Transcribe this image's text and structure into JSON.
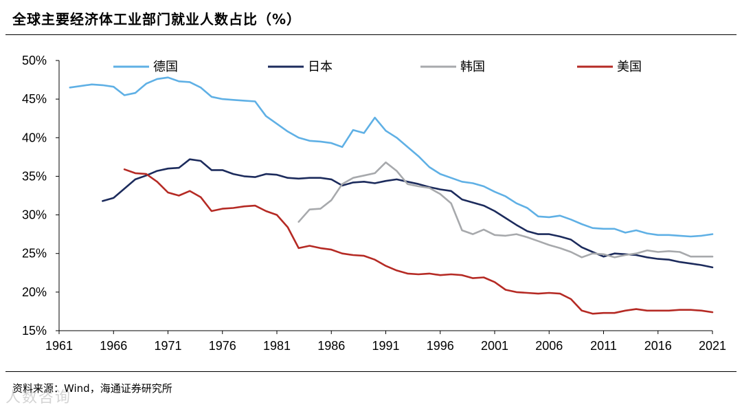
{
  "title": "全球主要经济体工业部门就业人数占比（%）",
  "source": "资料来源：Wind，海通证券研究所",
  "watermark": "人数咨询",
  "chart_data": {
    "type": "line",
    "title": "全球主要经济体工业部门就业人数占比（%）",
    "xlabel": "",
    "ylabel": "",
    "xlim": [
      1961,
      2021
    ],
    "ylim": [
      15,
      50
    ],
    "x_ticks": [
      1961,
      1966,
      1971,
      1976,
      1981,
      1986,
      1991,
      1996,
      2001,
      2006,
      2011,
      2016,
      2021
    ],
    "y_ticks": [
      15,
      20,
      25,
      30,
      35,
      40,
      45,
      50
    ],
    "y_tick_labels": [
      "15%",
      "20%",
      "25%",
      "30%",
      "35%",
      "40%",
      "45%",
      "50%"
    ],
    "grid": false,
    "legend_position": "top",
    "series": [
      {
        "name": "德国",
        "color": "#5fb0e5",
        "points": [
          [
            1962,
            46.5
          ],
          [
            1963,
            46.7
          ],
          [
            1964,
            46.9
          ],
          [
            1965,
            46.8
          ],
          [
            1966,
            46.6
          ],
          [
            1967,
            45.5
          ],
          [
            1968,
            45.8
          ],
          [
            1969,
            47.0
          ],
          [
            1970,
            47.6
          ],
          [
            1971,
            47.8
          ],
          [
            1972,
            47.3
          ],
          [
            1973,
            47.2
          ],
          [
            1974,
            46.5
          ],
          [
            1975,
            45.3
          ],
          [
            1976,
            45.0
          ],
          [
            1977,
            44.9
          ],
          [
            1978,
            44.8
          ],
          [
            1979,
            44.7
          ],
          [
            1980,
            42.8
          ],
          [
            1981,
            41.8
          ],
          [
            1982,
            40.8
          ],
          [
            1983,
            40.0
          ],
          [
            1984,
            39.6
          ],
          [
            1985,
            39.5
          ],
          [
            1986,
            39.3
          ],
          [
            1987,
            38.8
          ],
          [
            1988,
            41.0
          ],
          [
            1989,
            40.6
          ],
          [
            1990,
            42.6
          ],
          [
            1991,
            40.9
          ],
          [
            1992,
            40.0
          ],
          [
            1993,
            38.8
          ],
          [
            1994,
            37.6
          ],
          [
            1995,
            36.2
          ],
          [
            1996,
            35.3
          ],
          [
            1997,
            34.8
          ],
          [
            1998,
            34.3
          ],
          [
            1999,
            34.1
          ],
          [
            2000,
            33.7
          ],
          [
            2001,
            33.0
          ],
          [
            2002,
            32.4
          ],
          [
            2003,
            31.5
          ],
          [
            2004,
            30.9
          ],
          [
            2005,
            29.8
          ],
          [
            2006,
            29.7
          ],
          [
            2007,
            29.9
          ],
          [
            2008,
            29.4
          ],
          [
            2009,
            28.8
          ],
          [
            2010,
            28.3
          ],
          [
            2011,
            28.2
          ],
          [
            2012,
            28.2
          ],
          [
            2013,
            27.7
          ],
          [
            2014,
            28.0
          ],
          [
            2015,
            27.6
          ],
          [
            2016,
            27.4
          ],
          [
            2017,
            27.4
          ],
          [
            2018,
            27.3
          ],
          [
            2019,
            27.2
          ],
          [
            2020,
            27.3
          ],
          [
            2021,
            27.5
          ]
        ]
      },
      {
        "name": "日本",
        "color": "#1c2b5c",
        "points": [
          [
            1965,
            31.8
          ],
          [
            1966,
            32.2
          ],
          [
            1967,
            33.4
          ],
          [
            1968,
            34.6
          ],
          [
            1969,
            35.1
          ],
          [
            1970,
            35.7
          ],
          [
            1971,
            36.0
          ],
          [
            1972,
            36.1
          ],
          [
            1973,
            37.2
          ],
          [
            1974,
            37.0
          ],
          [
            1975,
            35.8
          ],
          [
            1976,
            35.8
          ],
          [
            1977,
            35.3
          ],
          [
            1978,
            35.0
          ],
          [
            1979,
            34.9
          ],
          [
            1980,
            35.3
          ],
          [
            1981,
            35.2
          ],
          [
            1982,
            34.8
          ],
          [
            1983,
            34.7
          ],
          [
            1984,
            34.8
          ],
          [
            1985,
            34.8
          ],
          [
            1986,
            34.6
          ],
          [
            1987,
            33.8
          ],
          [
            1988,
            34.2
          ],
          [
            1989,
            34.3
          ],
          [
            1990,
            34.1
          ],
          [
            1991,
            34.4
          ],
          [
            1992,
            34.6
          ],
          [
            1993,
            34.3
          ],
          [
            1994,
            34.0
          ],
          [
            1995,
            33.6
          ],
          [
            1996,
            33.3
          ],
          [
            1997,
            33.1
          ],
          [
            1998,
            32.0
          ],
          [
            1999,
            31.6
          ],
          [
            2000,
            31.2
          ],
          [
            2001,
            30.5
          ],
          [
            2002,
            29.6
          ],
          [
            2003,
            28.7
          ],
          [
            2004,
            27.9
          ],
          [
            2005,
            27.5
          ],
          [
            2006,
            27.5
          ],
          [
            2007,
            27.2
          ],
          [
            2008,
            26.8
          ],
          [
            2009,
            25.8
          ],
          [
            2010,
            25.2
          ],
          [
            2011,
            24.6
          ],
          [
            2012,
            25.0
          ],
          [
            2013,
            24.9
          ],
          [
            2014,
            24.8
          ],
          [
            2015,
            24.5
          ],
          [
            2016,
            24.3
          ],
          [
            2017,
            24.2
          ],
          [
            2018,
            23.9
          ],
          [
            2019,
            23.7
          ],
          [
            2020,
            23.5
          ],
          [
            2021,
            23.2
          ]
        ]
      },
      {
        "name": "韩国",
        "color": "#a7a9ac",
        "points": [
          [
            1983,
            29.1
          ],
          [
            1984,
            30.7
          ],
          [
            1985,
            30.8
          ],
          [
            1986,
            31.9
          ],
          [
            1987,
            34.0
          ],
          [
            1988,
            34.8
          ],
          [
            1989,
            35.1
          ],
          [
            1990,
            35.4
          ],
          [
            1991,
            36.8
          ],
          [
            1992,
            35.7
          ],
          [
            1993,
            34.0
          ],
          [
            1994,
            33.7
          ],
          [
            1995,
            33.5
          ],
          [
            1996,
            32.7
          ],
          [
            1997,
            31.5
          ],
          [
            1998,
            28.0
          ],
          [
            1999,
            27.5
          ],
          [
            2000,
            28.1
          ],
          [
            2001,
            27.4
          ],
          [
            2002,
            27.3
          ],
          [
            2003,
            27.5
          ],
          [
            2004,
            27.1
          ],
          [
            2005,
            26.6
          ],
          [
            2006,
            26.1
          ],
          [
            2007,
            25.7
          ],
          [
            2008,
            25.2
          ],
          [
            2009,
            24.5
          ],
          [
            2010,
            25.0
          ],
          [
            2011,
            24.9
          ],
          [
            2012,
            24.5
          ],
          [
            2013,
            24.8
          ],
          [
            2014,
            25.0
          ],
          [
            2015,
            25.4
          ],
          [
            2016,
            25.2
          ],
          [
            2017,
            25.3
          ],
          [
            2018,
            25.2
          ],
          [
            2019,
            24.6
          ],
          [
            2020,
            24.6
          ],
          [
            2021,
            24.6
          ]
        ]
      },
      {
        "name": "美国",
        "color": "#b52a24",
        "points": [
          [
            1967,
            35.9
          ],
          [
            1968,
            35.4
          ],
          [
            1969,
            35.3
          ],
          [
            1970,
            34.3
          ],
          [
            1971,
            32.9
          ],
          [
            1972,
            32.5
          ],
          [
            1973,
            33.1
          ],
          [
            1974,
            32.3
          ],
          [
            1975,
            30.5
          ],
          [
            1976,
            30.8
          ],
          [
            1977,
            30.9
          ],
          [
            1978,
            31.1
          ],
          [
            1979,
            31.2
          ],
          [
            1980,
            30.5
          ],
          [
            1981,
            30.0
          ],
          [
            1982,
            28.4
          ],
          [
            1983,
            25.7
          ],
          [
            1984,
            26.0
          ],
          [
            1985,
            25.7
          ],
          [
            1986,
            25.5
          ],
          [
            1987,
            25.0
          ],
          [
            1988,
            24.8
          ],
          [
            1989,
            24.7
          ],
          [
            1990,
            24.2
          ],
          [
            1991,
            23.4
          ],
          [
            1992,
            22.8
          ],
          [
            1993,
            22.4
          ],
          [
            1994,
            22.3
          ],
          [
            1995,
            22.4
          ],
          [
            1996,
            22.2
          ],
          [
            1997,
            22.3
          ],
          [
            1998,
            22.2
          ],
          [
            1999,
            21.8
          ],
          [
            2000,
            21.9
          ],
          [
            2001,
            21.3
          ],
          [
            2002,
            20.3
          ],
          [
            2003,
            20.0
          ],
          [
            2004,
            19.9
          ],
          [
            2005,
            19.8
          ],
          [
            2006,
            19.9
          ],
          [
            2007,
            19.8
          ],
          [
            2008,
            19.1
          ],
          [
            2009,
            17.6
          ],
          [
            2010,
            17.2
          ],
          [
            2011,
            17.3
          ],
          [
            2012,
            17.3
          ],
          [
            2013,
            17.6
          ],
          [
            2014,
            17.8
          ],
          [
            2015,
            17.6
          ],
          [
            2016,
            17.6
          ],
          [
            2017,
            17.6
          ],
          [
            2018,
            17.7
          ],
          [
            2019,
            17.7
          ],
          [
            2020,
            17.6
          ],
          [
            2021,
            17.4
          ]
        ]
      }
    ]
  }
}
